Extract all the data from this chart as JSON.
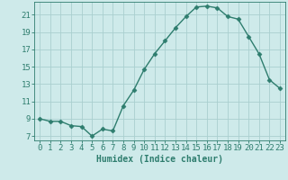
{
  "x": [
    0,
    1,
    2,
    3,
    4,
    5,
    6,
    7,
    8,
    9,
    10,
    11,
    12,
    13,
    14,
    15,
    16,
    17,
    18,
    19,
    20,
    21,
    22,
    23
  ],
  "y": [
    9,
    8.7,
    8.7,
    8.2,
    8.1,
    7.0,
    7.8,
    7.6,
    10.5,
    12.3,
    14.7,
    16.5,
    18.0,
    19.5,
    20.8,
    21.9,
    22.0,
    21.8,
    20.8,
    20.5,
    18.5,
    16.5,
    13.5,
    12.5
  ],
  "line_color": "#2e7d6e",
  "marker": "D",
  "marker_size": 2.5,
  "bg_color": "#ceeaea",
  "grid_color": "#aacfcf",
  "xlabel": "Humidex (Indice chaleur)",
  "xlim": [
    -0.5,
    23.5
  ],
  "ylim": [
    6.5,
    22.5
  ],
  "yticks": [
    7,
    9,
    11,
    13,
    15,
    17,
    19,
    21
  ],
  "xticks": [
    0,
    1,
    2,
    3,
    4,
    5,
    6,
    7,
    8,
    9,
    10,
    11,
    12,
    13,
    14,
    15,
    16,
    17,
    18,
    19,
    20,
    21,
    22,
    23
  ],
  "axis_color": "#2e7d6e",
  "label_fontsize": 7,
  "tick_fontsize": 6.5,
  "linewidth": 1.0
}
